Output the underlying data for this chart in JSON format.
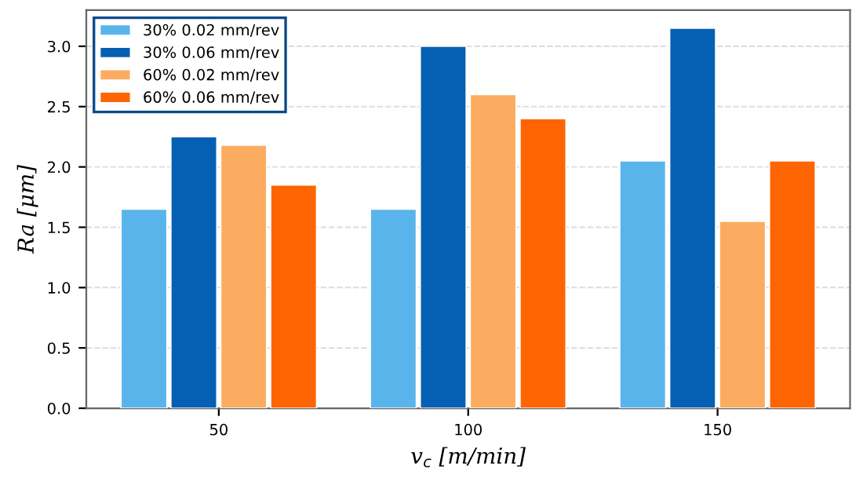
{
  "chart_data": {
    "type": "bar",
    "xlabel": "v$_{c}$ [m/min]",
    "ylabel": "Ra [μm]",
    "categories": [
      "50",
      "100",
      "150"
    ],
    "series": [
      {
        "name": "30% 0.02 mm/rev",
        "color": "#5ab4ec",
        "values": [
          1.65,
          1.65,
          2.05
        ]
      },
      {
        "name": "30% 0.06 mm/rev",
        "color": "#0560b4",
        "values": [
          2.25,
          3.0,
          3.15
        ]
      },
      {
        "name": "60% 0.02 mm/rev",
        "color": "#fcac60",
        "values": [
          2.18,
          2.6,
          1.55
        ]
      },
      {
        "name": "60% 0.06 mm/rev",
        "color": "#fe6502",
        "values": [
          1.85,
          2.4,
          2.05
        ]
      }
    ],
    "ylim": [
      0,
      3.3
    ],
    "yticks": [
      {
        "value": 0,
        "label": "0.0"
      },
      0.5,
      {
        "value": 1,
        "label": "1.0"
      },
      1.5,
      {
        "value": 2,
        "label": "2.0"
      },
      2.5,
      {
        "value": 3,
        "label": "3.0"
      }
    ],
    "grid": "y",
    "legend": "top left"
  }
}
